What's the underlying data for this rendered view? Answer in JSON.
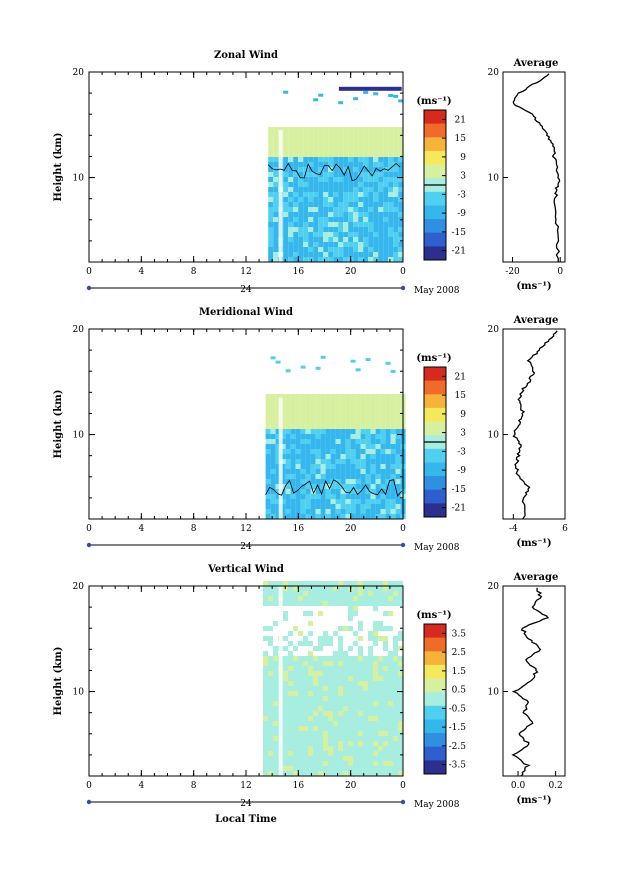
{
  "chart_data": [
    {
      "type": "heatmap",
      "title": "Zonal Wind",
      "ylabel": "Height (km)",
      "ylim": [
        2,
        20
      ],
      "yticks": [
        "10",
        "20"
      ],
      "xticks": [
        "0",
        "4",
        "8",
        "12",
        "16",
        "20",
        "0"
      ],
      "xlim": [
        0,
        24
      ],
      "day_label": "24",
      "date_label": "May 2008",
      "colorbar": {
        "unit": "(ms⁻¹)",
        "ticks": [
          "21",
          "15",
          "9",
          "3",
          "-3",
          "-9",
          "-15",
          "-21"
        ],
        "range": [
          -24,
          24
        ],
        "contour": 0
      },
      "data_start_hour": 13.7,
      "data_top_km": 14.5,
      "upper_band": [
        16.5,
        18
      ],
      "profile": {
        "title": "Average",
        "xlabel": "(ms⁻¹)",
        "xticks": [
          "-20",
          "0"
        ],
        "xlim": [
          -24,
          2
        ],
        "yticks": [
          "10",
          "20"
        ],
        "heights": [
          2,
          4,
          6,
          8,
          9,
          10,
          11,
          12,
          13,
          14,
          15,
          16,
          17,
          18,
          19,
          20
        ],
        "values": [
          -1,
          -1,
          -1.5,
          -2,
          -1.5,
          -0.5,
          -1.5,
          -2.5,
          -3,
          -5,
          -8,
          -12,
          -20,
          -17,
          -10,
          -4
        ]
      }
    },
    {
      "type": "heatmap",
      "title": "Meridional Wind",
      "ylabel": "Height (km)",
      "ylim": [
        2,
        20
      ],
      "yticks": [
        "10",
        "20"
      ],
      "xticks": [
        "0",
        "4",
        "8",
        "12",
        "16",
        "20",
        "0"
      ],
      "xlim": [
        0,
        24
      ],
      "day_label": "24",
      "date_label": "May 2008",
      "colorbar": {
        "unit": "(ms⁻¹)",
        "ticks": [
          "21",
          "15",
          "9",
          "3",
          "-3",
          "-9",
          "-15",
          "-21"
        ],
        "range": [
          -24,
          24
        ],
        "contour": 0
      },
      "data_start_hour": 13.5,
      "data_top_km": 13.5,
      "upper_band": [
        15.5,
        17.5
      ],
      "profile": {
        "title": "Average",
        "xlabel": "(ms⁻¹)",
        "xticks": [
          "-4",
          "6"
        ],
        "xlim": [
          -6,
          6
        ],
        "yticks": [
          "10",
          "20"
        ],
        "heights": [
          2,
          4,
          5,
          6,
          7,
          8,
          9,
          10,
          11,
          12,
          13,
          14,
          15,
          16,
          17,
          18,
          19,
          20
        ],
        "values": [
          -2,
          -2,
          -1,
          -3,
          -3.5,
          -3,
          -2.5,
          -4,
          -3,
          -2,
          -3,
          -2.5,
          -1,
          0,
          -1,
          1,
          3,
          5
        ]
      }
    },
    {
      "type": "heatmap",
      "title": "Vertical Wind",
      "ylabel": "Height (km)",
      "ylim": [
        2,
        20
      ],
      "yticks": [
        "10",
        "20"
      ],
      "xticks": [
        "0",
        "4",
        "8",
        "12",
        "16",
        "20",
        "0"
      ],
      "xlim": [
        0,
        24
      ],
      "xlabel": "Local Time",
      "day_label": "24",
      "date_label": "May 2008",
      "colorbar": {
        "unit": "(ms⁻¹)",
        "ticks": [
          "3.5",
          "2.5",
          "1.5",
          "0.5",
          "-0.5",
          "-1.5",
          "-2.5",
          "-3.5"
        ],
        "range": [
          -4,
          4
        ],
        "contour": null
      },
      "data_start_hour": 13.3,
      "data_top_km": 20,
      "upper_band": null,
      "profile": {
        "title": "Average",
        "xlabel": "(ms⁻¹)",
        "xticks": [
          "0.0",
          "0.2"
        ],
        "xlim": [
          -0.08,
          0.25
        ],
        "yticks": [
          "10",
          "20"
        ],
        "heights": [
          2,
          3,
          4,
          5,
          6,
          7,
          8,
          9,
          10,
          11,
          12,
          13,
          14,
          15,
          16,
          17,
          18,
          19,
          20
        ],
        "values": [
          0.02,
          0.05,
          -0.02,
          0.06,
          0.0,
          0.08,
          0.03,
          0.06,
          -0.02,
          0.07,
          0.1,
          0.04,
          0.12,
          0.06,
          0.02,
          0.16,
          0.08,
          0.12,
          0.1
        ]
      }
    }
  ]
}
